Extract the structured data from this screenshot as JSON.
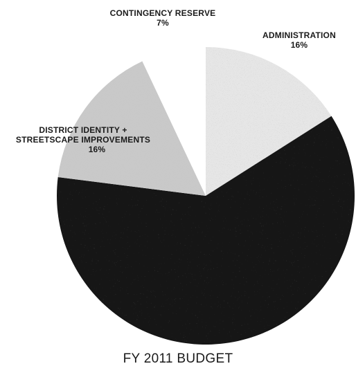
{
  "chart_data": {
    "type": "pie",
    "title": "FY 2011 BUDGET",
    "slices": [
      {
        "label": "ADMINISTRATION",
        "value": 16,
        "value_label": "16%",
        "color": "#e6e6e6",
        "texture": "light-speckle"
      },
      {
        "label": "",
        "value": 61,
        "value_label": "",
        "color": "#151515",
        "texture": "dark-speckle"
      },
      {
        "label": "DISTRICT IDENTITY + STREETSCAPE IMPROVEMENTS",
        "value": 16,
        "value_label": "16%",
        "color": "#c9c9c9",
        "texture": "medium-speckle"
      },
      {
        "label": "CONTINGENCY RESERVE",
        "value": 7,
        "value_label": "7%",
        "color": "#ffffff",
        "texture": "none"
      }
    ],
    "start_angle_deg": 0,
    "direction": "clockwise",
    "legend": "none"
  },
  "labels": {
    "contingency_name": "CONTINGENCY RESERVE",
    "contingency_pct": "7%",
    "admin_name": "ADMINISTRATION",
    "admin_pct": "16%",
    "district_name_line1": "DISTRICT IDENTITY +",
    "district_name_line2": "STREETSCAPE IMPROVEMENTS",
    "district_pct": "16%"
  }
}
